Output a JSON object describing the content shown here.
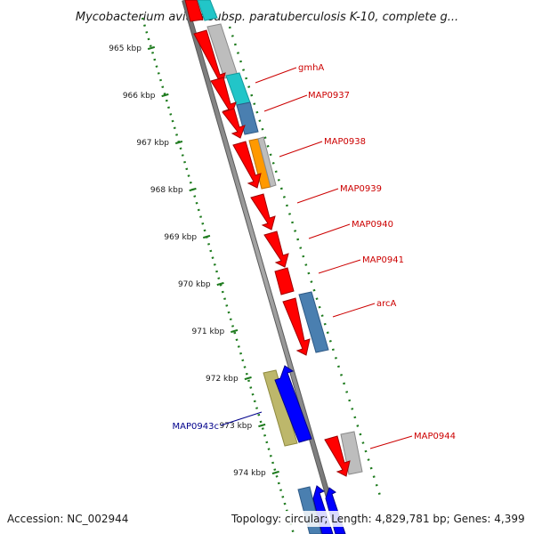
{
  "title": "Mycobacterium avium subsp. paratuberculosis K-10, complete g...",
  "accession": "Accession: NC_002944",
  "summary": "Topology: circular; Length: 4,829,781 bp; Genes: 4,399",
  "ruler": {
    "labels": [
      "965 kbp",
      "966 kbp",
      "967 kbp",
      "968 kbp",
      "969 kbp",
      "970 kbp",
      "971 kbp",
      "972 kbp",
      "973 kbp",
      "974 kbp"
    ]
  },
  "genes": [
    {
      "name": "gmhA",
      "strand": "forward",
      "color": "#ff0000"
    },
    {
      "name": "MAP0937",
      "strand": "forward",
      "color": "#ff0000"
    },
    {
      "name": "MAP0938",
      "strand": "forward",
      "color": "#ff0000"
    },
    {
      "name": "MAP0939",
      "strand": "forward",
      "color": "#ff0000"
    },
    {
      "name": "MAP0940",
      "strand": "forward",
      "color": "#ff0000"
    },
    {
      "name": "MAP0941",
      "strand": "forward",
      "color": "#ff0000"
    },
    {
      "name": "arcA",
      "strand": "forward",
      "color": "#ff0000"
    },
    {
      "name": "MAP0943c",
      "strand": "reverse",
      "color": "#0000ff"
    },
    {
      "name": "MAP0944",
      "strand": "forward",
      "color": "#ff0000"
    }
  ],
  "colors": {
    "forward_gene": "#ff0000",
    "reverse_gene": "#0000ff",
    "forward_label": "#cc0000",
    "reverse_label": "#00008b",
    "ruler_ticks": "#1e7b1e",
    "backbone": "#8c8c8c",
    "feature_gray": "#bdbdbd",
    "feature_cyan": "#22c5c8",
    "feature_steelblue": "#4a7fb0",
    "feature_orange": "#ff9900",
    "feature_olive": "#bdb76b"
  }
}
